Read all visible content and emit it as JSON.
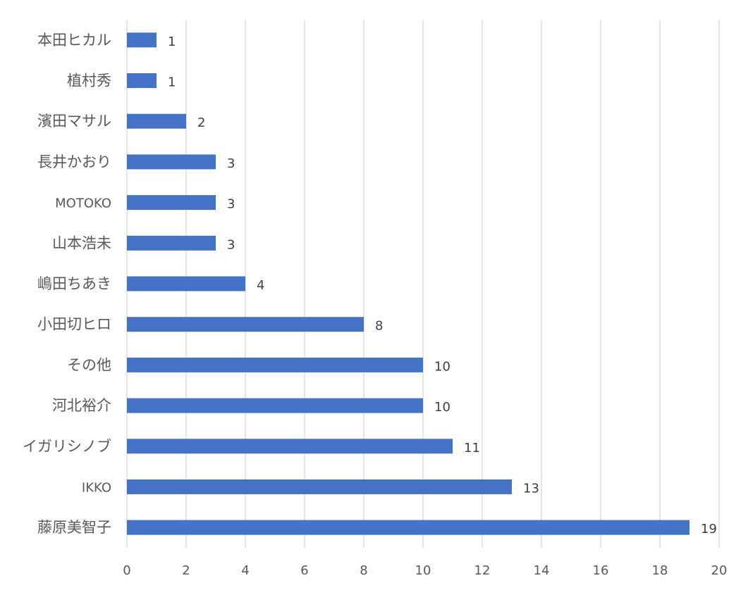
{
  "chart_data": {
    "type": "bar",
    "orientation": "horizontal",
    "categories": [
      "本田ヒカル",
      "植村秀",
      "濱田マサル",
      "長井かおり",
      "MOTOKO",
      "山本浩未",
      "嶋田ちあき",
      "小田切ヒロ",
      "その他",
      "河北裕介",
      "イガリシノブ",
      "IKKO",
      "藤原美智子"
    ],
    "values": [
      1,
      1,
      2,
      3,
      3,
      3,
      4,
      8,
      10,
      10,
      11,
      13,
      19
    ],
    "title": "",
    "xlabel": "",
    "ylabel": "",
    "xlim": [
      0,
      20
    ],
    "x_ticks": [
      0,
      2,
      4,
      6,
      8,
      10,
      12,
      14,
      16,
      18,
      20
    ],
    "grid": "vertical",
    "data_labels": true,
    "legend": "none",
    "colors": {
      "bar": "#4472c4",
      "grid": "#d9d9d9",
      "category_text": "#595959",
      "value_text": "#404040",
      "tick_text": "#595959"
    }
  }
}
